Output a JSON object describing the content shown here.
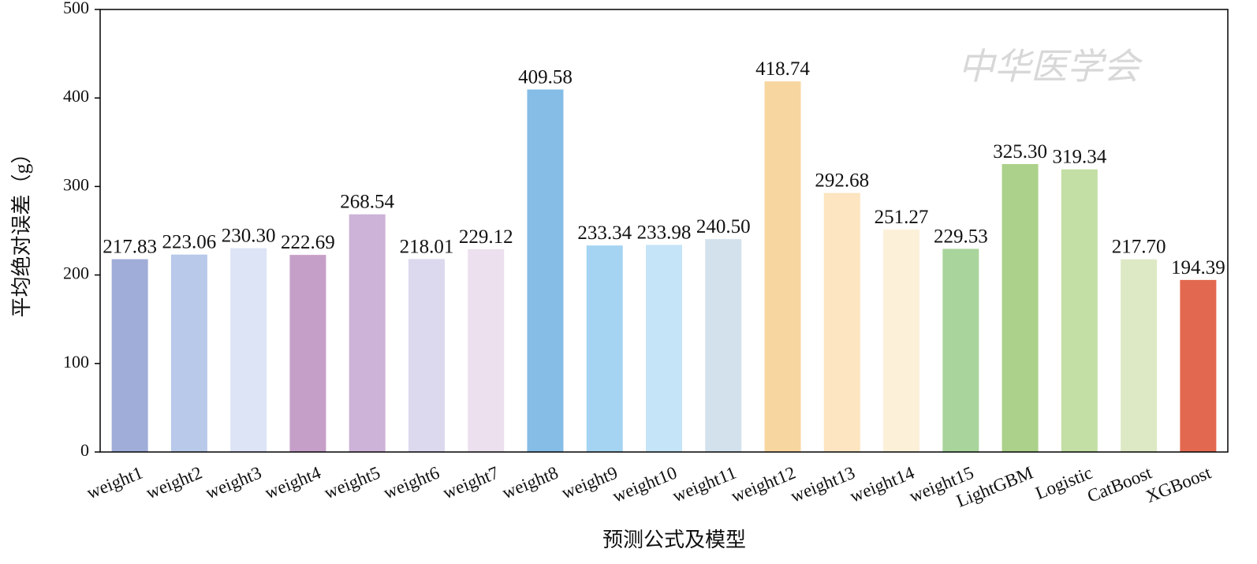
{
  "chart_data": {
    "type": "bar",
    "xlabel": "预测公式及模型",
    "ylabel": "平均绝对误差（g）",
    "watermark": "中华医学会",
    "categories": [
      "weight1",
      "weight2",
      "weight3",
      "weight4",
      "weight5",
      "weight6",
      "weight7",
      "weight8",
      "weight9",
      "weight10",
      "weight11",
      "weight12",
      "weight13",
      "weight14",
      "weight15",
      "LightGBM",
      "Logistic",
      "CatBoost",
      "XGBoost"
    ],
    "values": [
      217.83,
      223.06,
      230.3,
      222.69,
      268.54,
      218.01,
      229.12,
      409.58,
      233.34,
      233.98,
      240.5,
      418.74,
      292.68,
      251.27,
      229.53,
      325.3,
      319.34,
      217.7,
      194.39
    ],
    "value_labels": [
      "217.83",
      "223.06",
      "230.30",
      "222.69",
      "268.54",
      "218.01",
      "229.12",
      "409.58",
      "233.34",
      "233.98",
      "240.50",
      "418.74",
      "292.68",
      "251.27",
      "229.53",
      "325.30",
      "319.34",
      "217.70",
      "194.39"
    ],
    "colors": [
      "#9fadd8",
      "#b9c9ea",
      "#dce4f5",
      "#c69fc9",
      "#cdb3d8",
      "#dcd8ee",
      "#ecdfee",
      "#86bde6",
      "#a5d4f2",
      "#c5e4f7",
      "#d3e1ec",
      "#f8d6a0",
      "#fce5c0",
      "#fdf0d9",
      "#a9d49c",
      "#acd18a",
      "#c3dfa5",
      "#dde9c4",
      "#e2694f"
    ],
    "ylim": [
      0,
      500
    ],
    "yticks": [
      0,
      100,
      200,
      300,
      400,
      500
    ]
  }
}
